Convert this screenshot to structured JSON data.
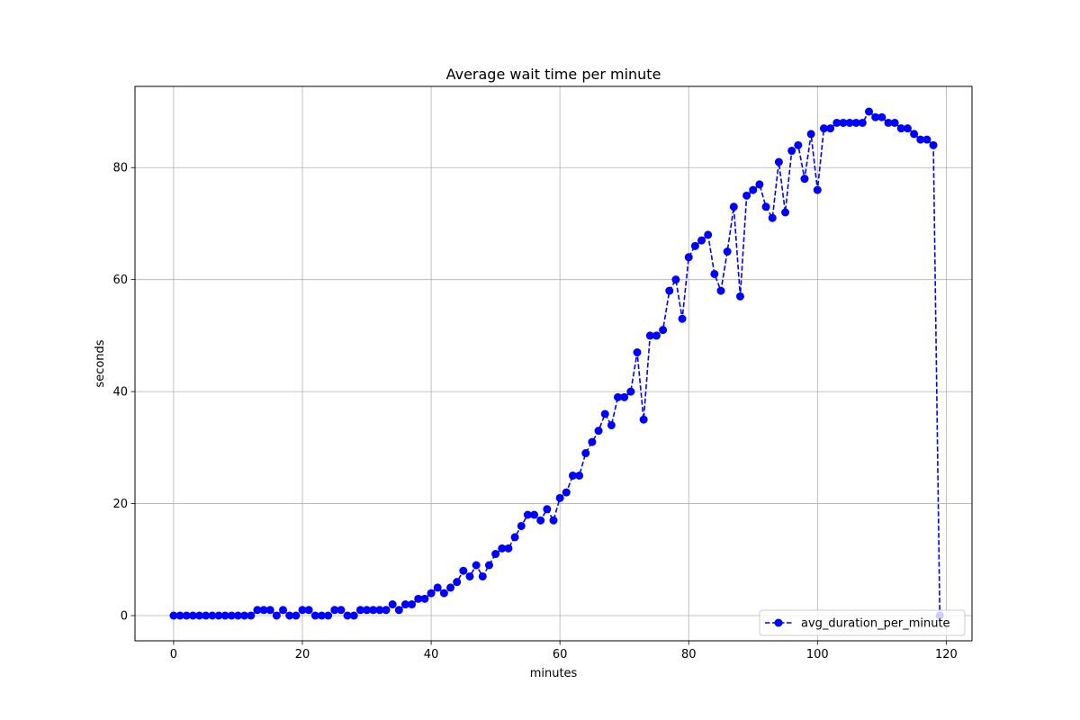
{
  "chart_data": {
    "type": "line",
    "title": "Average wait time per minute",
    "xlabel": "minutes",
    "ylabel": "seconds",
    "xlim": [
      -6,
      124
    ],
    "ylim": [
      -4.5,
      94.5
    ],
    "xticks": [
      0,
      20,
      40,
      60,
      80,
      100,
      120
    ],
    "yticks": [
      0,
      20,
      40,
      60,
      80
    ],
    "grid": true,
    "legend_position": "lower-right",
    "series": [
      {
        "name": "avg_duration_per_minute",
        "color": "#0000ff",
        "line_style": "dashed",
        "marker": "circle",
        "x": [
          0,
          1,
          2,
          3,
          4,
          5,
          6,
          7,
          8,
          9,
          10,
          11,
          12,
          13,
          14,
          15,
          16,
          17,
          18,
          19,
          20,
          21,
          22,
          23,
          24,
          25,
          26,
          27,
          28,
          29,
          30,
          31,
          32,
          33,
          34,
          35,
          36,
          37,
          38,
          39,
          40,
          41,
          42,
          43,
          44,
          45,
          46,
          47,
          48,
          49,
          50,
          51,
          52,
          53,
          54,
          55,
          56,
          57,
          58,
          59,
          60,
          61,
          62,
          63,
          64,
          65,
          66,
          67,
          68,
          69,
          70,
          71,
          72,
          73,
          74,
          75,
          76,
          77,
          78,
          79,
          80,
          81,
          82,
          83,
          84,
          85,
          86,
          87,
          88,
          89,
          90,
          91,
          92,
          93,
          94,
          95,
          96,
          97,
          98,
          99,
          100,
          101,
          102,
          103,
          104,
          105,
          106,
          107,
          108,
          109,
          110,
          111,
          112,
          113,
          114,
          115,
          116,
          117,
          118,
          119
        ],
        "y": [
          0,
          0,
          0,
          0,
          0,
          0,
          0,
          0,
          0,
          0,
          0,
          0,
          0,
          1,
          1,
          1,
          0,
          1,
          0,
          0,
          1,
          1,
          0,
          0,
          0,
          1,
          1,
          0,
          0,
          1,
          1,
          1,
          1,
          1,
          2,
          1,
          2,
          2,
          3,
          3,
          4,
          5,
          4,
          5,
          6,
          8,
          7,
          9,
          7,
          9,
          11,
          12,
          12,
          14,
          16,
          18,
          18,
          17,
          19,
          17,
          21,
          22,
          25,
          25,
          29,
          31,
          33,
          36,
          34,
          39,
          39,
          40,
          47,
          35,
          50,
          50,
          51,
          58,
          60,
          53,
          64,
          66,
          67,
          68,
          61,
          58,
          65,
          73,
          57,
          75,
          76,
          77,
          73,
          71,
          81,
          72,
          83,
          84,
          78,
          86,
          76,
          87,
          87,
          88,
          88,
          88,
          88,
          88,
          90,
          89,
          89,
          88,
          88,
          87,
          87,
          86,
          85,
          85,
          84,
          0
        ]
      }
    ]
  }
}
